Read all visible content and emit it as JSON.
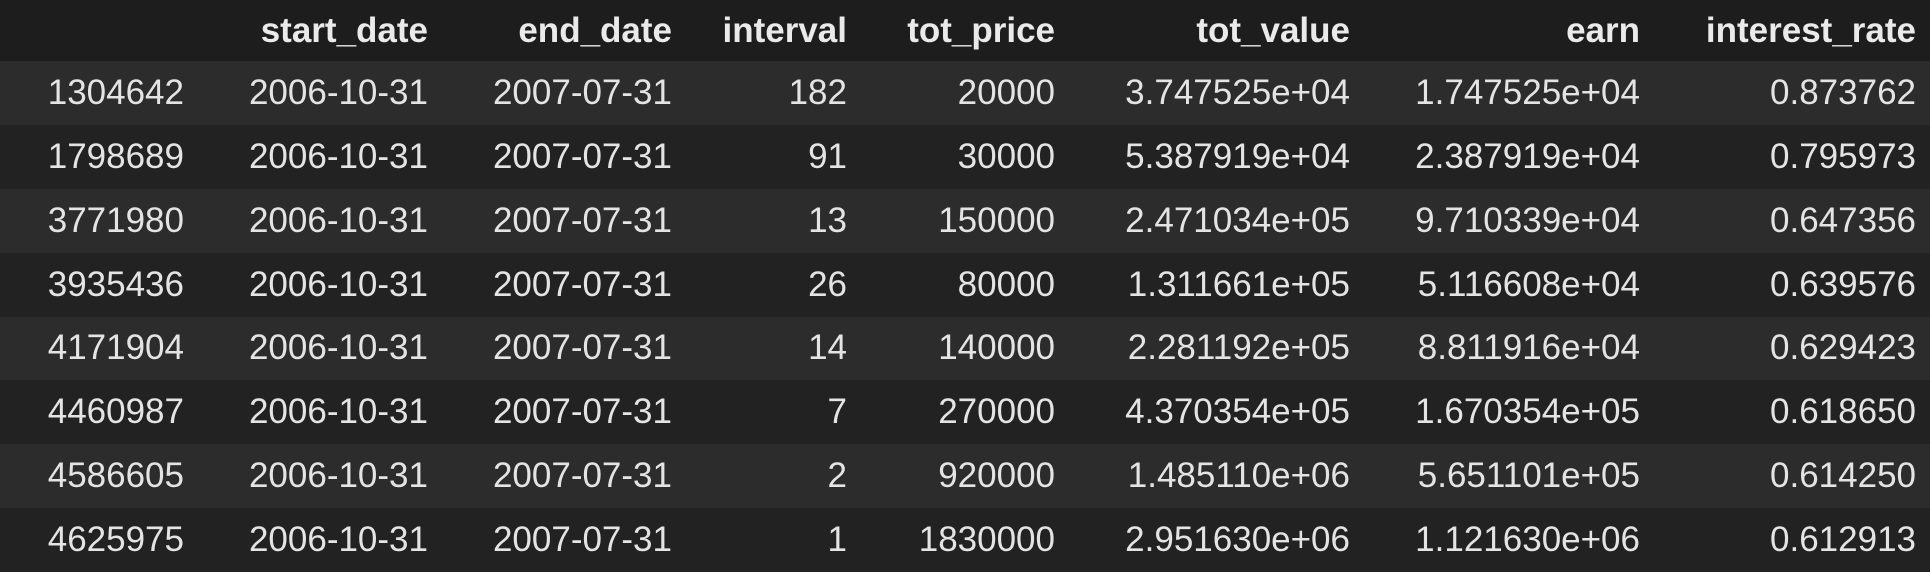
{
  "table": {
    "columns": [
      "",
      "start_date",
      "end_date",
      "interval",
      "tot_price",
      "tot_value",
      "earn",
      "interest_rate"
    ],
    "rows": [
      [
        "1304642",
        "2006-10-31",
        "2007-07-31",
        "182",
        "20000",
        "3.747525e+04",
        "1.747525e+04",
        "0.873762"
      ],
      [
        "1798689",
        "2006-10-31",
        "2007-07-31",
        "91",
        "30000",
        "5.387919e+04",
        "2.387919e+04",
        "0.795973"
      ],
      [
        "3771980",
        "2006-10-31",
        "2007-07-31",
        "13",
        "150000",
        "2.471034e+05",
        "9.710339e+04",
        "0.647356"
      ],
      [
        "3935436",
        "2006-10-31",
        "2007-07-31",
        "26",
        "80000",
        "1.311661e+05",
        "5.116608e+04",
        "0.639576"
      ],
      [
        "4171904",
        "2006-10-31",
        "2007-07-31",
        "14",
        "140000",
        "2.281192e+05",
        "8.811916e+04",
        "0.629423"
      ],
      [
        "4460987",
        "2006-10-31",
        "2007-07-31",
        "7",
        "270000",
        "4.370354e+05",
        "1.670354e+05",
        "0.618650"
      ],
      [
        "4586605",
        "2006-10-31",
        "2007-07-31",
        "2",
        "920000",
        "1.485110e+06",
        "5.651101e+05",
        "0.614250"
      ],
      [
        "4625975",
        "2006-10-31",
        "2007-07-31",
        "1",
        "1830000",
        "2.951630e+06",
        "1.121630e+06",
        "0.612913"
      ]
    ]
  },
  "colors": {
    "background": "#212121",
    "header_background": "#1d1d1d",
    "row_odd": "#2c2c2c",
    "row_even": "#222222",
    "text": "#e4e4e4"
  }
}
